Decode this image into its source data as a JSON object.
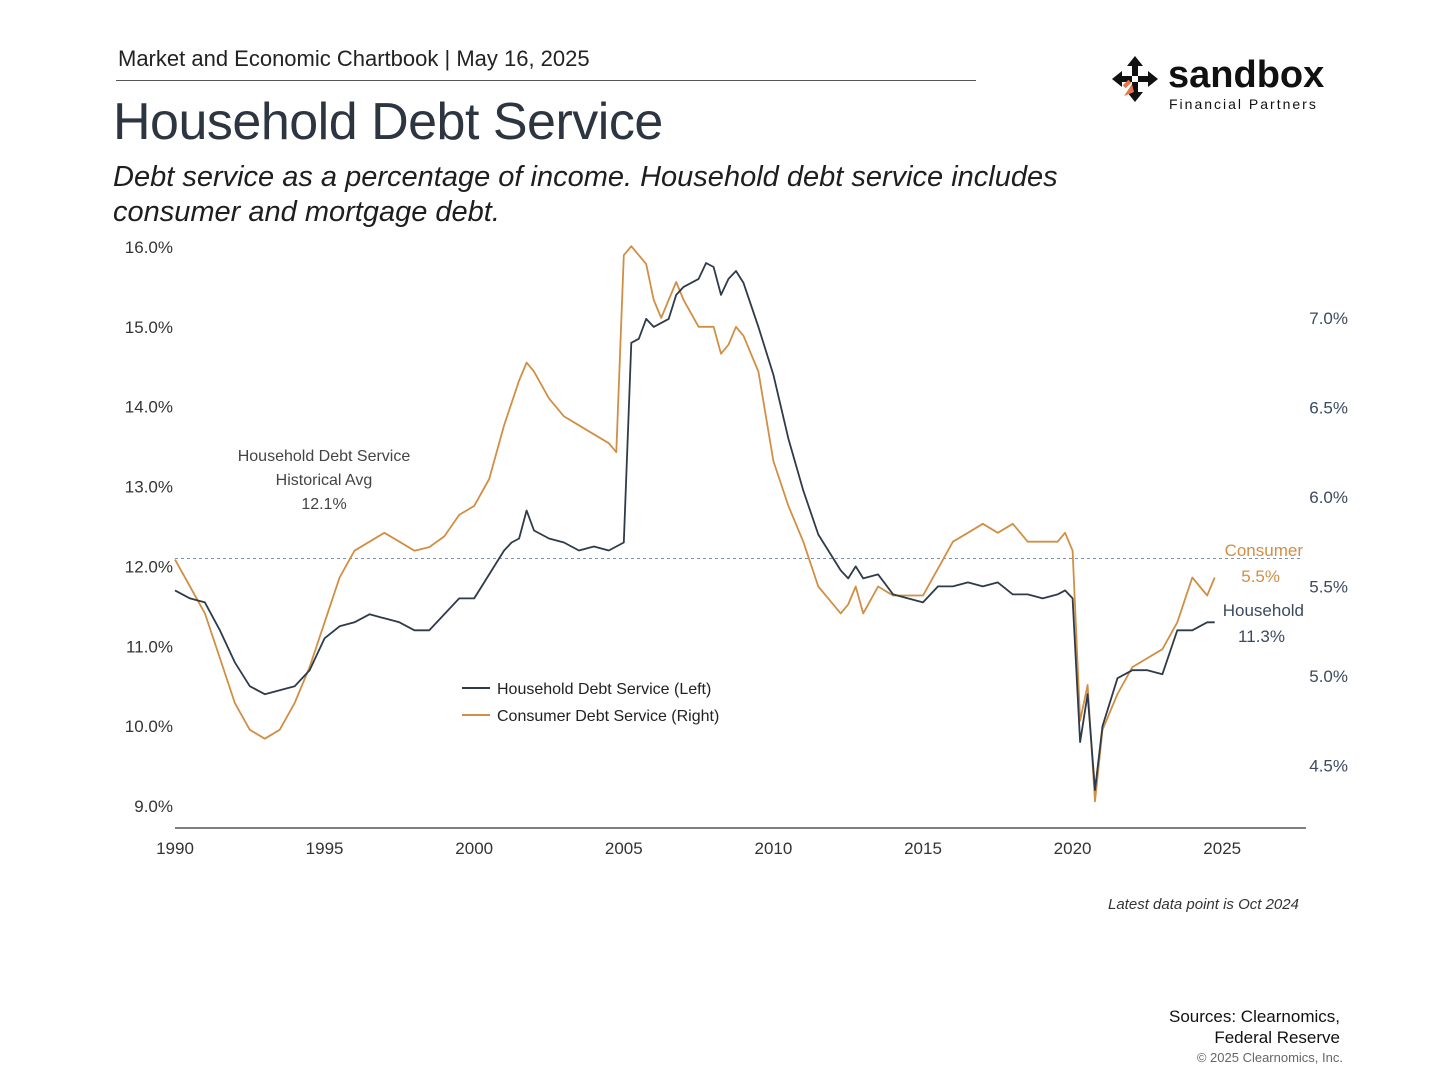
{
  "header": {
    "chartbook": "Market and Economic Chartbook | May 16, 2025",
    "title": "Household Debt Service",
    "subtitle": "Debt service as a percentage of income. Household debt service includes consumer and mortgage debt."
  },
  "logo": {
    "name": "sandbox",
    "tagline": "Financial Partners",
    "accent": "#e8744a"
  },
  "footer": {
    "latest": "Latest data point is Oct 2024",
    "sources_line1": "Sources: Clearnomics,",
    "sources_line2": "Federal Reserve",
    "copyright": "© 2025 Clearnomics, Inc."
  },
  "chart_data": {
    "type": "line",
    "title": "Household Debt Service",
    "x_ticks": [
      1990,
      1995,
      2000,
      2005,
      2010,
      2015,
      2020,
      2025
    ],
    "xlim": [
      1990,
      2028
    ],
    "left_axis": {
      "ylim": [
        9.0,
        16.0
      ],
      "ticks": [
        "9.0%",
        "10.0%",
        "11.0%",
        "12.0%",
        "13.0%",
        "14.0%",
        "15.0%",
        "16.0%"
      ],
      "values": [
        9,
        10,
        11,
        12,
        13,
        14,
        15,
        16
      ]
    },
    "right_axis": {
      "ylim": [
        4.2744,
        7.3956
      ],
      "ticks": [
        "4.5%",
        "5.0%",
        "5.5%",
        "6.0%",
        "6.5%",
        "7.0%"
      ],
      "values": [
        4.5,
        5.0,
        5.5,
        6.0,
        6.5,
        7.0
      ]
    },
    "reference_line": {
      "value": 12.1,
      "axis": "left",
      "label_line1": "Household Debt Service",
      "label_line2": "Historical Avg",
      "label_line3": "12.1%"
    },
    "legend": [
      {
        "label": "Household Debt Service (Left)",
        "color": "#2e3b4a"
      },
      {
        "label": "Consumer Debt Service (Right)",
        "color": "#d18f45"
      }
    ],
    "end_labels": {
      "consumer_name": "Consumer",
      "consumer_value": "5.5%",
      "household_name": "Household",
      "household_value": "11.3%"
    },
    "series": [
      {
        "name": "Household Debt Service (Left)",
        "axis": "left",
        "color": "#2e3b4a",
        "x": [
          1990,
          1990.5,
          1991,
          1991.5,
          1992,
          1992.5,
          1993,
          1993.5,
          1994,
          1994.5,
          1995,
          1995.5,
          1996,
          1996.5,
          1997,
          1997.5,
          1998,
          1998.5,
          1999,
          1999.5,
          2000,
          2000.5,
          2001,
          2001.25,
          2001.5,
          2001.75,
          2002,
          2002.5,
          2003,
          2003.5,
          2004,
          2004.5,
          2004.75,
          2005,
          2005.25,
          2005.5,
          2005.75,
          2006,
          2006.25,
          2006.5,
          2006.75,
          2007,
          2007.25,
          2007.5,
          2007.75,
          2008,
          2008.25,
          2008.5,
          2008.75,
          2009,
          2009.5,
          2010,
          2010.5,
          2011,
          2011.5,
          2012,
          2012.25,
          2012.5,
          2012.75,
          2013,
          2013.5,
          2014,
          2014.5,
          2015,
          2015.5,
          2016,
          2016.5,
          2017,
          2017.5,
          2018,
          2018.5,
          2019,
          2019.5,
          2019.75,
          2020,
          2020.25,
          2020.5,
          2020.75,
          2021,
          2021.25,
          2021.5,
          2022,
          2022.5,
          2023,
          2023.5,
          2024,
          2024.5,
          2024.75
        ],
        "y": [
          11.7,
          11.6,
          11.55,
          11.2,
          10.8,
          10.5,
          10.4,
          10.45,
          10.5,
          10.7,
          11.1,
          11.25,
          11.3,
          11.4,
          11.35,
          11.3,
          11.2,
          11.2,
          11.4,
          11.6,
          11.6,
          11.9,
          12.2,
          12.3,
          12.35,
          12.7,
          12.45,
          12.35,
          12.3,
          12.2,
          12.25,
          12.2,
          12.25,
          12.3,
          14.8,
          14.85,
          15.1,
          15.0,
          15.05,
          15.1,
          15.4,
          15.5,
          15.55,
          15.6,
          15.8,
          15.75,
          15.4,
          15.6,
          15.7,
          15.55,
          15.0,
          14.4,
          13.6,
          12.95,
          12.4,
          12.1,
          11.95,
          11.85,
          12.0,
          11.85,
          11.9,
          11.65,
          11.6,
          11.55,
          11.75,
          11.75,
          11.8,
          11.75,
          11.8,
          11.65,
          11.65,
          11.6,
          11.65,
          11.7,
          11.6,
          9.8,
          10.4,
          9.2,
          10.0,
          10.3,
          10.6,
          10.7,
          10.7,
          10.65,
          11.2,
          11.2,
          11.3,
          11.3
        ]
      },
      {
        "name": "Consumer Debt Service (Right)",
        "axis": "right",
        "color": "#d18f45",
        "x": [
          1990,
          1990.5,
          1991,
          1991.5,
          1992,
          1992.5,
          1993,
          1993.5,
          1994,
          1994.5,
          1995,
          1995.5,
          1996,
          1996.5,
          1997,
          1997.5,
          1998,
          1998.5,
          1999,
          1999.5,
          2000,
          2000.5,
          2001,
          2001.5,
          2001.75,
          2002,
          2002.5,
          2003,
          2003.5,
          2004,
          2004.5,
          2004.75,
          2005,
          2005.25,
          2005.5,
          2005.75,
          2006,
          2006.25,
          2006.5,
          2006.75,
          2007,
          2007.5,
          2008,
          2008.25,
          2008.5,
          2008.75,
          2009,
          2009.5,
          2010,
          2010.5,
          2011,
          2011.5,
          2012,
          2012.25,
          2012.5,
          2012.75,
          2013,
          2013.5,
          2014,
          2014.5,
          2015,
          2015.5,
          2016,
          2016.5,
          2017,
          2017.5,
          2018,
          2018.5,
          2019,
          2019.5,
          2019.75,
          2020,
          2020.25,
          2020.5,
          2020.75,
          2021,
          2021.25,
          2021.5,
          2022,
          2022.5,
          2023,
          2023.5,
          2024,
          2024.5,
          2024.75
        ],
        "y": [
          5.65,
          5.5,
          5.35,
          5.1,
          4.85,
          4.7,
          4.65,
          4.7,
          4.85,
          5.05,
          5.3,
          5.55,
          5.7,
          5.75,
          5.8,
          5.75,
          5.7,
          5.72,
          5.78,
          5.9,
          5.95,
          6.1,
          6.4,
          6.65,
          6.75,
          6.7,
          6.55,
          6.45,
          6.4,
          6.35,
          6.3,
          6.25,
          7.35,
          7.4,
          7.35,
          7.3,
          7.1,
          7.0,
          7.1,
          7.2,
          7.1,
          6.95,
          6.95,
          6.8,
          6.85,
          6.95,
          6.9,
          6.7,
          6.2,
          5.95,
          5.75,
          5.5,
          5.4,
          5.35,
          5.4,
          5.5,
          5.35,
          5.5,
          5.45,
          5.45,
          5.45,
          5.6,
          5.75,
          5.8,
          5.85,
          5.8,
          5.85,
          5.75,
          5.75,
          5.75,
          5.8,
          5.7,
          4.75,
          4.95,
          4.3,
          4.7,
          4.8,
          4.9,
          5.05,
          5.1,
          5.15,
          5.3,
          5.55,
          5.45,
          5.55
        ]
      }
    ]
  }
}
